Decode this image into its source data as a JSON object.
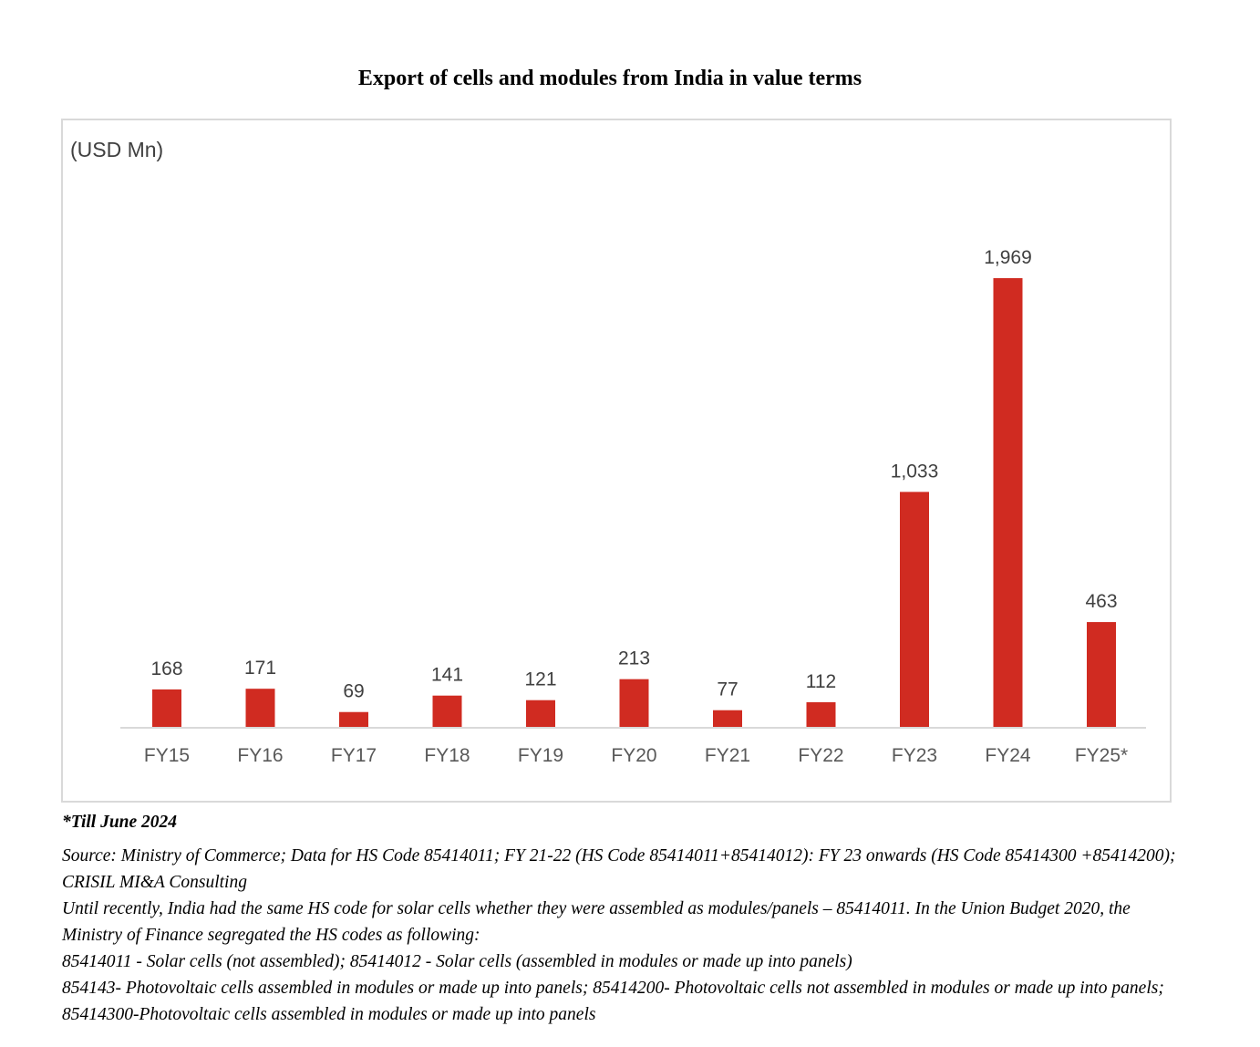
{
  "chart_data": {
    "type": "bar",
    "title": "Export of cells and modules from India in value terms",
    "unit_label": "(USD Mn)",
    "xlabel": "",
    "ylabel": "",
    "categories": [
      "FY15",
      "FY16",
      "FY17",
      "FY18",
      "FY19",
      "FY20",
      "FY21",
      "FY22",
      "FY23",
      "FY24",
      "FY25*"
    ],
    "values": [
      168,
      171,
      69,
      141,
      121,
      213,
      77,
      112,
      1033,
      1969,
      463
    ],
    "data_labels": [
      "168",
      "171",
      "69",
      "141",
      "121",
      "213",
      "77",
      "112",
      "1,033",
      "1,969",
      "463"
    ],
    "ylim": [
      0,
      1969
    ],
    "grid": false,
    "legend": "none",
    "bar_color": "#d02b21"
  },
  "notes": {
    "till": "*Till June 2024",
    "source": "Source: Ministry of Commerce; Data for HS Code 85414011; FY 21-22 (HS Code 85414011+85414012): FY 23 onwards (HS Code 85414300 +85414200); CRISIL MI&A Consulting",
    "until": "Until recently, India had the same HS code for solar cells whether they were assembled as modules/panels – 85414011. In the Union Budget 2020, the Ministry of Finance segregated the HS codes as following:",
    "codes1": "85414011 - Solar cells (not assembled); 85414012 - Solar cells (assembled in modules or made up into panels)",
    "codes2": "854143- Photovoltaic cells assembled in modules or made up into panels; 85414200- Photovoltaic cells not assembled in modules or made up into panels; 85414300-Photovoltaic cells assembled in modules or made up into panels"
  }
}
